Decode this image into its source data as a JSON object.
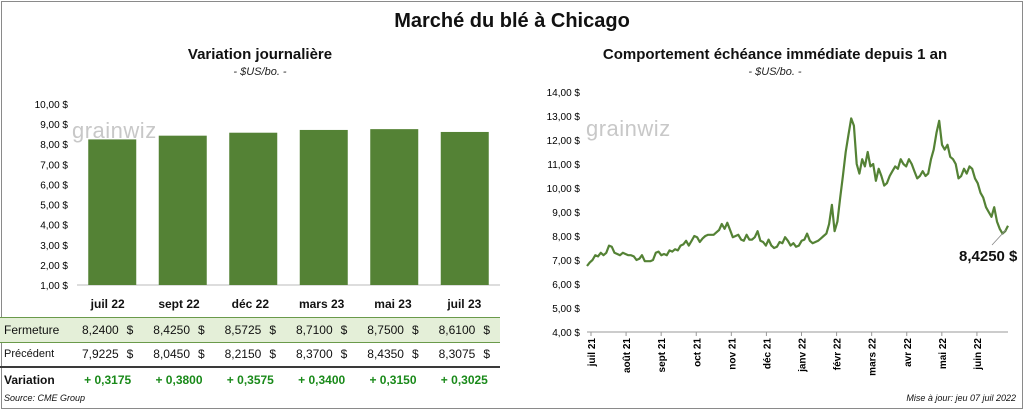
{
  "title": "Marché du blé à Chicago",
  "left": {
    "subtitle": "Variation  journalière",
    "unit": "- $US/bo. -",
    "watermark": "grainwiz",
    "chart_data": {
      "type": "bar",
      "categories": [
        "juil 22",
        "sept 22",
        "déc 22",
        "mars 23",
        "mai 23",
        "juil 23"
      ],
      "values": [
        8.24,
        8.425,
        8.5725,
        8.71,
        8.75,
        8.61
      ],
      "ylim": [
        1,
        10
      ],
      "yticks": [
        "1,00 $",
        "2,00 $",
        "3,00 $",
        "4,00 $",
        "5,00 $",
        "6,00 $",
        "7,00 $",
        "8,00 $",
        "9,00 $",
        "10,00 $"
      ],
      "color": "#548235"
    },
    "table": {
      "rows": [
        {
          "label": "Fermeture",
          "values": [
            "8,2400",
            "8,4250",
            "8,5725",
            "8,7100",
            "8,7500",
            "8,6100"
          ],
          "suffix": "$"
        },
        {
          "label": "Précédent",
          "values": [
            "7,9225",
            "8,0450",
            "8,2150",
            "8,3700",
            "8,4350",
            "8,3075"
          ],
          "suffix": "$"
        },
        {
          "label": "Variation",
          "values": [
            "+ 0,3175",
            "+ 0,3800",
            "+ 0,3575",
            "+ 0,3400",
            "+ 0,3150",
            "+ 0,3025"
          ],
          "suffix": ""
        }
      ]
    }
  },
  "right": {
    "subtitle": "Comportement  échéance immédiate depuis 1 an",
    "unit": "- $US/bo. -",
    "watermark": "grainwiz",
    "last_value": "8,4250 $",
    "chart_data": {
      "type": "line",
      "ylim": [
        4,
        14
      ],
      "yticks": [
        "4,00 $",
        "5,00 $",
        "6,00 $",
        "7,00 $",
        "8,00 $",
        "9,00 $",
        "10,00 $",
        "11,00 $",
        "12,00 $",
        "13,00 $",
        "14,00 $"
      ],
      "xticks": [
        "juil 21",
        "août 21",
        "sept 21",
        "oct 21",
        "nov 21",
        "déc 21",
        "janv 22",
        "févr 22",
        "mars 22",
        "avr 22",
        "mai 22",
        "juin 22"
      ],
      "values": [
        6.75,
        6.9,
        7.0,
        7.2,
        7.15,
        7.3,
        7.2,
        7.3,
        7.6,
        7.55,
        7.3,
        7.25,
        7.2,
        7.3,
        7.25,
        7.2,
        7.2,
        7.15,
        7.0,
        7.05,
        7.2,
        6.95,
        6.95,
        6.95,
        7.0,
        7.3,
        7.35,
        7.2,
        7.25,
        7.2,
        7.4,
        7.35,
        7.45,
        7.4,
        7.6,
        7.65,
        7.8,
        7.6,
        7.8,
        8.0,
        7.95,
        7.75,
        7.9,
        8.0,
        8.05,
        8.05,
        8.05,
        8.15,
        8.25,
        8.5,
        8.3,
        8.55,
        8.25,
        7.95,
        8.0,
        8.05,
        7.85,
        7.8,
        8.05,
        7.85,
        7.85,
        7.95,
        8.2,
        7.8,
        7.75,
        7.6,
        7.85,
        7.6,
        7.5,
        7.55,
        7.75,
        7.7,
        7.95,
        7.8,
        7.6,
        7.7,
        7.55,
        7.6,
        7.8,
        7.85,
        8.1,
        7.8,
        7.7,
        7.75,
        7.8,
        7.9,
        8.0,
        8.1,
        8.5,
        9.3,
        8.2,
        8.6,
        9.6,
        10.5,
        11.5,
        12.2,
        12.9,
        12.6,
        11.0,
        10.6,
        11.2,
        10.9,
        11.5,
        10.9,
        11.0,
        10.3,
        10.8,
        10.5,
        10.1,
        10.2,
        10.5,
        10.7,
        10.9,
        10.8,
        11.2,
        11.0,
        10.9,
        11.2,
        11.0,
        10.7,
        10.4,
        10.5,
        10.7,
        10.5,
        10.6,
        11.2,
        11.6,
        12.3,
        12.8,
        11.8,
        11.6,
        11.8,
        11.3,
        11.2,
        11.0,
        10.4,
        10.5,
        10.8,
        10.6,
        10.9,
        10.8,
        10.4,
        10.2,
        9.8,
        9.6,
        9.2,
        9.0,
        8.8,
        9.2,
        8.6,
        8.3,
        8.1,
        8.2,
        8.425
      ]
    }
  },
  "footer": {
    "source": "Source: CME Group",
    "updated": "Mise à jour: jeu 07 juil 2022"
  }
}
